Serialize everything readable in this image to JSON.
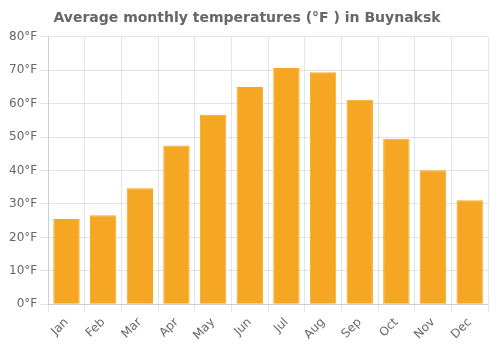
{
  "chart_data": {
    "type": "bar",
    "title": "Average monthly temperatures (°F ) in Buynaksk",
    "categories": [
      "Jan",
      "Feb",
      "Mar",
      "Apr",
      "May",
      "Jun",
      "Jul",
      "Aug",
      "Sep",
      "Oct",
      "Nov",
      "Dec"
    ],
    "values": [
      25.5,
      26.6,
      34.7,
      47.5,
      56.7,
      65.0,
      70.7,
      69.4,
      61.2,
      49.5,
      40.1,
      31.1
    ],
    "color": "#F5A623",
    "ylim": [
      0,
      80
    ],
    "yticks": [
      {
        "value": 0,
        "label": "0°F"
      },
      {
        "value": 10,
        "label": "10°F"
      },
      {
        "value": 20,
        "label": "20°F"
      },
      {
        "value": 30,
        "label": "30°F"
      },
      {
        "value": 40,
        "label": "40°F"
      },
      {
        "value": 50,
        "label": "50°F"
      },
      {
        "value": 60,
        "label": "60°F"
      },
      {
        "value": 70,
        "label": "70°F"
      },
      {
        "value": 80,
        "label": "80°F"
      }
    ],
    "grid": true
  }
}
